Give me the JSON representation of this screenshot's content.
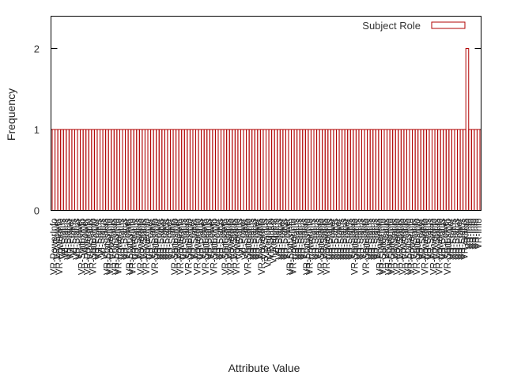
{
  "chart_data": {
    "type": "bar",
    "title": "",
    "xlabel": "Attribute Value",
    "ylabel": "Frequency",
    "ylim": [
      0,
      2.4
    ],
    "yticks": [
      "0",
      "1",
      "2"
    ],
    "grid": false,
    "legend_position": "top-right",
    "series": [
      {
        "name": "Subject Role",
        "color": "#b00000",
        "values": [
          1,
          1,
          1,
          1,
          1,
          1,
          1,
          1,
          1,
          1,
          1,
          1,
          1,
          1,
          1,
          1,
          1,
          1,
          1,
          1,
          1,
          1,
          1,
          1,
          1,
          1,
          1,
          1,
          1,
          1,
          1,
          1,
          1,
          1,
          1,
          1,
          1,
          1,
          1,
          1,
          1,
          1,
          1,
          1,
          1,
          1,
          1,
          1,
          1,
          1,
          1,
          1,
          1,
          1,
          1,
          1,
          1,
          1,
          1,
          1,
          1,
          1,
          1,
          1,
          1,
          1,
          1,
          1,
          1,
          1,
          1,
          1,
          1,
          1,
          1,
          1,
          1,
          1,
          1,
          1,
          1,
          1,
          1,
          1,
          1,
          1,
          1,
          1,
          1,
          1,
          1,
          1,
          1,
          1,
          1,
          1,
          1,
          1,
          1,
          1,
          1,
          1,
          1,
          1,
          1,
          1,
          1,
          1,
          1,
          1,
          1,
          1,
          1,
          1,
          1,
          1,
          1,
          1,
          1,
          1,
          1,
          1,
          1,
          1,
          1,
          1,
          1,
          1,
          1,
          1,
          1,
          1,
          1,
          1,
          1,
          1,
          1,
          1,
          1,
          1,
          1,
          1,
          1,
          1,
          1,
          1,
          1,
          2,
          1,
          1,
          1,
          1
        ]
      }
    ],
    "categories": [
      "VR-PowerInfo",
      "VR-Power",
      "VR-PowerInfo",
      "VR-Status",
      "WI-Status",
      "VR-Status",
      "VR-Power",
      "VI-Status",
      "VR-Status",
      "VR-Power",
      "VR-StatusInfo",
      "VI-Power",
      "VR-PowerInfo",
      "VR-Status",
      "VR-StatusInfo",
      "VR-Power",
      "VR-Status",
      "VI-Status",
      "VR-Status",
      "VR-StatusInfo",
      "VR-PowerInfo",
      "VR-Status",
      "VR-StatusInfo",
      "VR-PowerInfo",
      "VR-Status",
      "VR-Status",
      "VR-Power",
      "VR-StatusInfo",
      "VR-PowerInfo",
      "VR-Status",
      "VR-Status",
      "VR-PowerInfo",
      "VR-Status",
      "VR-PowerInfo",
      "VR-Power",
      "VR-Status",
      "VR-StatusInfo",
      "VR-Power",
      "VR-Status",
      "VR-Power",
      "VR-Status",
      "VR-Power",
      "VR-Status",
      "VR-StatusInfo",
      "VR-Power",
      "VR-PowerInfo",
      "VR-Status",
      "VR-Status",
      "VR-StatusInfo",
      "VR-Power",
      "VR-Status",
      "VR-PowerInfo",
      "VR-Status",
      "VR-Power",
      "VR-StatusInfo",
      "VR-Status",
      "VR-Power",
      "VR-StatusInfo",
      "VR-Power",
      "VR-Status",
      "VR-Power",
      "VR-StatusInfo",
      "VR-Status",
      "VR-PowerInfo",
      "VR-Status",
      "VR-PowerInfo",
      "VR-Status",
      "VI-Power",
      "VR-Status",
      "VR-StatusInfo",
      "VR-Status",
      "VR-Status",
      "VR-Power",
      "VR-Status",
      "VR-PowerInfo",
      "VR-Status",
      "VR-Request",
      "VR-Status",
      "VI-Request",
      "VI-Status",
      "VR-Status",
      "VR-Power",
      "VR-Status",
      "VR-Power",
      "VR-StatusInfo",
      "VR-PowerInfo",
      "VR-Status",
      "VR-Status",
      "VR-Status",
      "VR-Status",
      "VR-StatusInfo",
      "VR-PowerInfo",
      "VR-Status",
      "VR-Status",
      "VR-Status",
      "VR-StatusInfo",
      "VR-Status",
      "VR-PowerInfo",
      "VR-Status",
      "VR-Power",
      "VR-Status",
      "VR-Power",
      "VR-Status",
      "VR-Status",
      "VR-Power",
      "VR-Status",
      "VR-Status",
      "VR-StatusInfo",
      "VR-Status",
      "VR-Status",
      "VR-Status",
      "VR-StatusInfo",
      "VR-Status",
      "VR-Status",
      "VR-Status",
      "VR-Status",
      "VR-PowerInfo",
      "VR-StatusInfo",
      "VR-Status",
      "VR-PowerInfo",
      "VR-StatusInfo",
      "VR-Status",
      "VR-PowerInfo",
      "VR-Status",
      "VR-PowerInfo",
      "VR-Status",
      "VR-StatusInfo",
      "VR-PowerInfo",
      "VR-Status",
      "VR-StatusInfo",
      "VR-Power",
      "VR-Status",
      "VR-PowerInfo",
      "VR-Status",
      "VR-Status",
      "VR-PowerInfo",
      "VR-Status",
      "VR-PowerInfo",
      "VR-Status",
      "VR-Power",
      "VR-StatusInfo",
      "VR-Power",
      "VR-Status",
      "VR-Status",
      "VR-Power",
      "VR-Status",
      "VR-Status",
      "VR-Info",
      "VR-Info",
      "VR-Info",
      "VR-Info",
      "VR-Info"
    ]
  }
}
